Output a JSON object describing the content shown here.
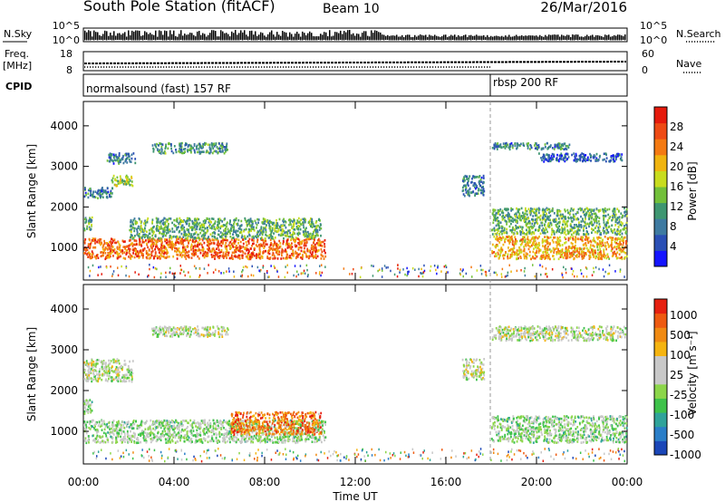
{
  "header": {
    "title": "South Pole Station (fitACF)",
    "beam": "Beam 10",
    "date": "26/Mar/2016"
  },
  "panels": {
    "nsky_label": "N.Sky",
    "nsearch_label": "N.Search",
    "nsky_ticks": [
      "10^5",
      "10^0"
    ],
    "nsearch_ticks": [
      "10^5",
      "10^0"
    ],
    "freq_label": "Freq.",
    "freq_unit": "[MHz]",
    "freq_ticks": [
      "18",
      "8"
    ],
    "nave_label": "Nave",
    "nave_ticks": [
      "60",
      "0"
    ],
    "cpid_label": "CPID",
    "cpid_modes": [
      {
        "label": "normalsound (fast) 157 RF",
        "start_hour": 0
      },
      {
        "label": "rbsp 200 RF",
        "start_hour": 18
      }
    ]
  },
  "axes": {
    "ylabel": "Slant Range [km]",
    "xlabel": "Time UT",
    "range_ticks": [
      "1000",
      "2000",
      "3000",
      "4000"
    ],
    "time_ticks": [
      "00:00",
      "04:00",
      "08:00",
      "12:00",
      "16:00",
      "20:00",
      "00:00"
    ]
  },
  "power_scale": {
    "label": "Power [dB]",
    "ticks": [
      "4",
      "8",
      "12",
      "16",
      "20",
      "24",
      "28"
    ],
    "colors": [
      "#1414ff",
      "#2a4fb5",
      "#3e7aa1",
      "#3e9671",
      "#72c03a",
      "#c8dc1e",
      "#f0b40f",
      "#f47a12",
      "#ee4a14",
      "#e61a0c"
    ]
  },
  "velocity_scale": {
    "label": "Velocity [m s⁻¹]",
    "ticks": [
      "1000",
      "500",
      "100",
      "25",
      "-25",
      "-100",
      "-500",
      "-1000"
    ],
    "colors": [
      "#1a46b8",
      "#2a7ec8",
      "#2fa39a",
      "#3ec24a",
      "#8cd64a",
      "#c8c8c8",
      "#c8c8c8",
      "#f5b410",
      "#f08a12",
      "#ee5a10",
      "#e62010"
    ]
  },
  "chart_data": [
    {
      "type": "heatmap",
      "title": "South Pole Station (fitACF) Beam 10 26/Mar/2016",
      "quantity": "Power",
      "unit": "dB",
      "xlabel": "Time UT",
      "ylabel": "Slant Range [km]",
      "xlim_hours": [
        0,
        24
      ],
      "ylim_km": [
        200,
        4600
      ],
      "clim": [
        0,
        30
      ],
      "echo_regions": [
        {
          "t_start": 0.0,
          "t_end": 10.7,
          "range_min_km": 700,
          "range_max_km": 1250,
          "value": 24
        },
        {
          "t_start": 0.0,
          "t_end": 0.4,
          "range_min_km": 1400,
          "range_max_km": 1800,
          "value": 12
        },
        {
          "t_start": 0.0,
          "t_end": 1.3,
          "range_min_km": 2200,
          "range_max_km": 2500,
          "value": 8
        },
        {
          "t_start": 1.2,
          "t_end": 2.2,
          "range_min_km": 2500,
          "range_max_km": 2800,
          "value": 14
        },
        {
          "t_start": 1.0,
          "t_end": 2.3,
          "range_min_km": 3050,
          "range_max_km": 3350,
          "value": 8
        },
        {
          "t_start": 3.0,
          "t_end": 6.4,
          "range_min_km": 3300,
          "range_max_km": 3600,
          "value": 10
        },
        {
          "t_start": 2.0,
          "t_end": 10.5,
          "range_min_km": 1200,
          "range_max_km": 1750,
          "value": 12
        },
        {
          "t_start": 16.7,
          "t_end": 17.7,
          "range_min_km": 2250,
          "range_max_km": 2800,
          "value": 8
        },
        {
          "t_start": 18.0,
          "t_end": 24.0,
          "range_min_km": 700,
          "range_max_km": 1300,
          "value": 20
        },
        {
          "t_start": 18.0,
          "t_end": 24.0,
          "range_min_km": 1300,
          "range_max_km": 2000,
          "value": 12
        },
        {
          "t_start": 18.0,
          "t_end": 21.5,
          "range_min_km": 3400,
          "range_max_km": 3600,
          "value": 8
        },
        {
          "t_start": 20.0,
          "t_end": 23.8,
          "range_min_km": 3100,
          "range_max_km": 3350,
          "value": 6
        }
      ]
    },
    {
      "type": "heatmap",
      "quantity": "Velocity",
      "unit": "m s^-1",
      "xlabel": "Time UT",
      "ylabel": "Slant Range [km]",
      "xlim_hours": [
        0,
        24
      ],
      "ylim_km": [
        200,
        4600
      ],
      "clim": [
        -1000,
        1000
      ],
      "echo_regions": [
        {
          "t_start": 0.0,
          "t_end": 10.7,
          "range_min_km": 700,
          "range_max_km": 1300,
          "value": -120
        },
        {
          "t_start": 6.5,
          "t_end": 10.5,
          "range_min_km": 900,
          "range_max_km": 1500,
          "value": 600
        },
        {
          "t_start": 0.0,
          "t_end": 0.4,
          "range_min_km": 1400,
          "range_max_km": 1800,
          "value": -200
        },
        {
          "t_start": 0.0,
          "t_end": 2.2,
          "range_min_km": 2200,
          "range_max_km": 2800,
          "value": 0
        },
        {
          "t_start": 3.0,
          "t_end": 6.4,
          "range_min_km": 3300,
          "range_max_km": 3600,
          "value": 0
        },
        {
          "t_start": 16.7,
          "t_end": 17.7,
          "range_min_km": 2250,
          "range_max_km": 2800,
          "value": 0
        },
        {
          "t_start": 18.0,
          "t_end": 24.0,
          "range_min_km": 700,
          "range_max_km": 1400,
          "value": -150
        },
        {
          "t_start": 18.0,
          "t_end": 24.0,
          "range_min_km": 3200,
          "range_max_km": 3600,
          "value": 0
        }
      ]
    }
  ]
}
